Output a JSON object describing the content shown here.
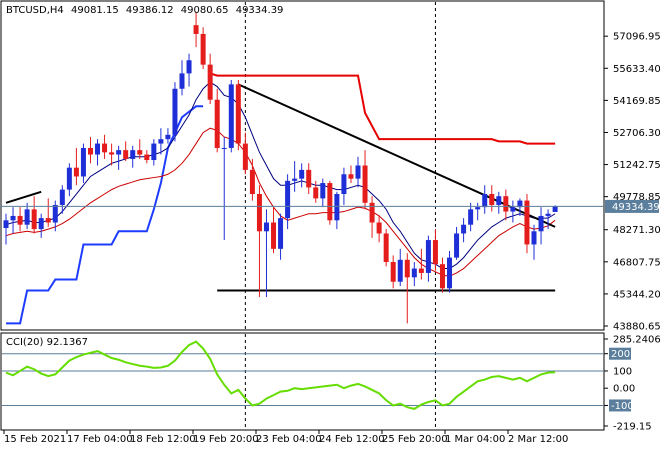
{
  "header": {
    "symbol": "BTCUSD,H4",
    "open": "49081.15",
    "high": "49386.12",
    "low": "49080.65",
    "close": "49334.39"
  },
  "price_axis": {
    "ticks": [
      "57096.95",
      "55633.40",
      "54169.85",
      "52706.30",
      "51242.75",
      "49778.85",
      "48271.30",
      "46807.75",
      "45344.20",
      "43880.65"
    ],
    "current_price_label": "49334.39"
  },
  "indicator": {
    "title": "CCI(20) 92.1367",
    "ticks": [
      "285.2406",
      "200",
      "100",
      "0.00",
      "-100",
      "-219.15"
    ],
    "highlighted_levels": [
      "200",
      "-100"
    ]
  },
  "time_axis": {
    "labels": [
      "15 Feb 2021",
      "17 Feb 04:00",
      "18 Feb 12:00",
      "19 Feb 20:00",
      "23 Feb 04:00",
      "24 Feb 12:00",
      "25 Feb 20:00",
      "1 Mar 04:00",
      "2 Mar 12:00"
    ]
  },
  "colors": {
    "bull": "#1f2fd8",
    "bear": "#e51c1c",
    "ma_fast": "#000080",
    "ma_slow": "#cc0000",
    "supertrend_up": "#1e3cff",
    "supertrend_down": "#e60000",
    "trendline": "#000000",
    "cci_line": "#66dd00",
    "level_line": "#5a7e9c",
    "price_marker": "#5a7e9c",
    "highlight_box": "#5a7e9c"
  },
  "chart_data": {
    "type": "candlestick",
    "symbol": "BTCUSD",
    "timeframe": "H4",
    "ylim": [
      43880.65,
      58200
    ],
    "candles": [
      {
        "o": 48350,
        "h": 49000,
        "l": 47600,
        "c": 48700
      },
      {
        "o": 48700,
        "h": 49300,
        "l": 48100,
        "c": 48900
      },
      {
        "o": 48900,
        "h": 49300,
        "l": 48200,
        "c": 48500
      },
      {
        "o": 48500,
        "h": 49500,
        "l": 48300,
        "c": 49200
      },
      {
        "o": 49200,
        "h": 49800,
        "l": 48100,
        "c": 48300
      },
      {
        "o": 48300,
        "h": 49000,
        "l": 47900,
        "c": 48800
      },
      {
        "o": 48800,
        "h": 49700,
        "l": 48400,
        "c": 48600
      },
      {
        "o": 48600,
        "h": 49600,
        "l": 48200,
        "c": 49400
      },
      {
        "o": 49400,
        "h": 50300,
        "l": 49000,
        "c": 50100
      },
      {
        "o": 50100,
        "h": 51300,
        "l": 49800,
        "c": 51100
      },
      {
        "o": 51100,
        "h": 52000,
        "l": 50300,
        "c": 50700
      },
      {
        "o": 50700,
        "h": 52200,
        "l": 50400,
        "c": 52000
      },
      {
        "o": 52000,
        "h": 52500,
        "l": 51300,
        "c": 51700
      },
      {
        "o": 51700,
        "h": 52400,
        "l": 51200,
        "c": 52200
      },
      {
        "o": 52200,
        "h": 52600,
        "l": 51500,
        "c": 51800
      },
      {
        "o": 51800,
        "h": 52200,
        "l": 51200,
        "c": 51700
      },
      {
        "o": 51700,
        "h": 52100,
        "l": 51000,
        "c": 51900
      },
      {
        "o": 51900,
        "h": 52300,
        "l": 51400,
        "c": 51500
      },
      {
        "o": 51500,
        "h": 52100,
        "l": 51100,
        "c": 51900
      },
      {
        "o": 51900,
        "h": 52400,
        "l": 51500,
        "c": 51700
      },
      {
        "o": 51700,
        "h": 51900,
        "l": 51300,
        "c": 51450
      },
      {
        "o": 51450,
        "h": 52400,
        "l": 51200,
        "c": 52200
      },
      {
        "o": 52200,
        "h": 52900,
        "l": 51700,
        "c": 52400
      },
      {
        "o": 52400,
        "h": 52900,
        "l": 52200,
        "c": 52600
      },
      {
        "o": 52600,
        "h": 55000,
        "l": 52300,
        "c": 54700
      },
      {
        "o": 54700,
        "h": 56000,
        "l": 54400,
        "c": 55400
      },
      {
        "o": 55400,
        "h": 56300,
        "l": 54800,
        "c": 56000
      },
      {
        "o": 57600,
        "h": 58200,
        "l": 56600,
        "c": 57200
      },
      {
        "o": 57200,
        "h": 57500,
        "l": 55600,
        "c": 55800
      },
      {
        "o": 55800,
        "h": 56300,
        "l": 54000,
        "c": 54200
      },
      {
        "o": 54200,
        "h": 54700,
        "l": 51800,
        "c": 52000
      },
      {
        "o": 52000,
        "h": 52500,
        "l": 47800,
        "c": 52000
      },
      {
        "o": 52000,
        "h": 55100,
        "l": 51800,
        "c": 54900
      },
      {
        "o": 54900,
        "h": 55100,
        "l": 51900,
        "c": 52200
      },
      {
        "o": 52200,
        "h": 52700,
        "l": 50800,
        "c": 51000
      },
      {
        "o": 51000,
        "h": 51500,
        "l": 49600,
        "c": 49900
      },
      {
        "o": 49900,
        "h": 50300,
        "l": 45200,
        "c": 48200
      },
      {
        "o": 48200,
        "h": 49200,
        "l": 45200,
        "c": 48600
      },
      {
        "o": 48600,
        "h": 49300,
        "l": 47200,
        "c": 47400
      },
      {
        "o": 47400,
        "h": 49000,
        "l": 46900,
        "c": 48800
      },
      {
        "o": 48800,
        "h": 50800,
        "l": 48300,
        "c": 50500
      },
      {
        "o": 50500,
        "h": 51400,
        "l": 50000,
        "c": 50600
      },
      {
        "o": 50600,
        "h": 51300,
        "l": 50200,
        "c": 51000
      },
      {
        "o": 51000,
        "h": 51300,
        "l": 49900,
        "c": 50200
      },
      {
        "o": 50200,
        "h": 50500,
        "l": 49500,
        "c": 49700
      },
      {
        "o": 49700,
        "h": 50600,
        "l": 49300,
        "c": 50400
      },
      {
        "o": 50400,
        "h": 50500,
        "l": 48500,
        "c": 48700
      },
      {
        "o": 48700,
        "h": 50000,
        "l": 48300,
        "c": 49900
      },
      {
        "o": 49900,
        "h": 51100,
        "l": 49400,
        "c": 50800
      },
      {
        "o": 50800,
        "h": 51200,
        "l": 50400,
        "c": 50600
      },
      {
        "o": 50600,
        "h": 51600,
        "l": 50200,
        "c": 51200
      },
      {
        "o": 51200,
        "h": 51900,
        "l": 49200,
        "c": 49500
      },
      {
        "o": 49500,
        "h": 49800,
        "l": 47900,
        "c": 48600
      },
      {
        "o": 48600,
        "h": 48900,
        "l": 47700,
        "c": 48100
      },
      {
        "o": 48100,
        "h": 48300,
        "l": 46600,
        "c": 46800
      },
      {
        "o": 46800,
        "h": 47100,
        "l": 45600,
        "c": 45900
      },
      {
        "o": 45900,
        "h": 47400,
        "l": 45700,
        "c": 46900
      },
      {
        "o": 46900,
        "h": 47200,
        "l": 44000,
        "c": 46100
      },
      {
        "o": 46100,
        "h": 46800,
        "l": 45700,
        "c": 46500
      },
      {
        "o": 46500,
        "h": 47400,
        "l": 46000,
        "c": 46300
      },
      {
        "o": 46300,
        "h": 48000,
        "l": 45900,
        "c": 47800
      },
      {
        "o": 47800,
        "h": 48300,
        "l": 46400,
        "c": 46700
      },
      {
        "o": 46700,
        "h": 47000,
        "l": 45400,
        "c": 45600
      },
      {
        "o": 45600,
        "h": 47300,
        "l": 45400,
        "c": 47000
      },
      {
        "o": 47000,
        "h": 48400,
        "l": 46900,
        "c": 48100
      },
      {
        "o": 48100,
        "h": 48800,
        "l": 47700,
        "c": 48500
      },
      {
        "o": 48500,
        "h": 49500,
        "l": 48200,
        "c": 49200
      },
      {
        "o": 49200,
        "h": 49500,
        "l": 48700,
        "c": 49300
      },
      {
        "o": 49300,
        "h": 50300,
        "l": 49000,
        "c": 49900
      },
      {
        "o": 49900,
        "h": 50300,
        "l": 49100,
        "c": 49400
      },
      {
        "o": 49400,
        "h": 50000,
        "l": 49000,
        "c": 49800
      },
      {
        "o": 49800,
        "h": 50100,
        "l": 48700,
        "c": 49100
      },
      {
        "o": 49100,
        "h": 49600,
        "l": 48600,
        "c": 49300
      },
      {
        "o": 49300,
        "h": 49700,
        "l": 48900,
        "c": 49600
      },
      {
        "o": 49600,
        "h": 49900,
        "l": 47200,
        "c": 47600
      },
      {
        "o": 47600,
        "h": 48500,
        "l": 46900,
        "c": 48200
      },
      {
        "o": 48200,
        "h": 49300,
        "l": 47600,
        "c": 48900
      },
      {
        "o": 48900,
        "h": 49200,
        "l": 48300,
        "c": 49000
      },
      {
        "o": 49081.15,
        "h": 49386.12,
        "l": 49080.65,
        "c": 49334.39
      }
    ],
    "ma_fast": [
      48500,
      48600,
      48650,
      48700,
      48600,
      48600,
      48700,
      48800,
      49100,
      49500,
      49900,
      50300,
      50700,
      50900,
      51100,
      51300,
      51400,
      51500,
      51600,
      51600,
      51600,
      51700,
      51800,
      52000,
      52500,
      53000,
      53500,
      54200,
      54700,
      55000,
      54800,
      54400,
      54300,
      54000,
      53400,
      52600,
      51800,
      51200,
      50600,
      50300,
      50300,
      50400,
      50500,
      50400,
      50300,
      50300,
      50200,
      50100,
      50100,
      50200,
      50300,
      50200,
      49900,
      49600,
      49200,
      48600,
      48200,
      47700,
      47200,
      46900,
      46800,
      46700,
      46500,
      46500,
      46700,
      47000,
      47400,
      47800,
      48100,
      48400,
      48600,
      48800,
      48900,
      49000,
      48900,
      48800,
      48800,
      48800,
      49000
    ],
    "ma_slow": [
      48000,
      48100,
      48150,
      48200,
      48150,
      48200,
      48300,
      48400,
      48550,
      48750,
      49000,
      49250,
      49500,
      49700,
      49900,
      50100,
      50250,
      50350,
      50450,
      50550,
      50600,
      50650,
      50700,
      50800,
      51000,
      51300,
      51700,
      52200,
      52700,
      52900,
      52800,
      52500,
      52400,
      52200,
      51800,
      51200,
      50400,
      49800,
      49300,
      48900,
      48700,
      48800,
      48900,
      49000,
      49000,
      49050,
      49050,
      49050,
      49100,
      49200,
      49300,
      49250,
      49100,
      48900,
      48600,
      48200,
      47800,
      47400,
      47000,
      46700,
      46500,
      46350,
      46200,
      46150,
      46300,
      46500,
      46800,
      47100,
      47400,
      47700,
      48000,
      48200,
      48400,
      48550,
      48400,
      48300,
      48350,
      48450,
      48700
    ],
    "supertrend": {
      "up": [
        [
          0,
          44000
        ],
        [
          2,
          44000
        ],
        [
          3,
          45500
        ],
        [
          6,
          45500
        ],
        [
          7,
          46000
        ],
        [
          10,
          46000
        ],
        [
          11,
          47600
        ],
        [
          15,
          47600
        ],
        [
          16,
          48200
        ],
        [
          20,
          48200
        ],
        [
          21,
          49200
        ],
        [
          22,
          50400
        ],
        [
          23,
          52000
        ],
        [
          25,
          53400
        ],
        [
          27,
          53900
        ],
        [
          28,
          53900
        ]
      ],
      "down": [
        [
          29,
          55400
        ],
        [
          30,
          55300
        ],
        [
          48,
          55300
        ],
        [
          50,
          55300
        ],
        [
          51,
          53600
        ],
        [
          53,
          52400
        ],
        [
          63,
          52400
        ],
        [
          69,
          52400
        ],
        [
          70,
          52300
        ],
        [
          73,
          52300
        ],
        [
          74,
          52200
        ],
        [
          78,
          52200
        ]
      ]
    },
    "trendline_high": [
      [
        33,
        54900
      ],
      [
        78,
        48400
      ]
    ],
    "support_line": [
      [
        30,
        45500
      ],
      [
        78,
        45500
      ]
    ],
    "resistance_stub": [
      [
        0,
        49500
      ],
      [
        5,
        50000
      ]
    ],
    "cci": {
      "name": "CCI(20)",
      "last": 92.1367,
      "ylim": [
        -219.15,
        285.2406
      ],
      "values": [
        90,
        75,
        100,
        125,
        110,
        85,
        70,
        80,
        120,
        160,
        180,
        195,
        205,
        215,
        195,
        175,
        165,
        150,
        140,
        130,
        125,
        118,
        120,
        130,
        160,
        210,
        250,
        270,
        230,
        170,
        80,
        20,
        -30,
        -10,
        -60,
        -100,
        -90,
        -60,
        -40,
        -20,
        -15,
        0,
        -5,
        0,
        5,
        10,
        15,
        20,
        0,
        15,
        25,
        10,
        -10,
        -30,
        -70,
        -100,
        -90,
        -110,
        -120,
        -95,
        -80,
        -70,
        -100,
        -90,
        -50,
        -20,
        10,
        40,
        50,
        65,
        70,
        60,
        50,
        60,
        40,
        60,
        80,
        90,
        92.1367
      ]
    }
  }
}
